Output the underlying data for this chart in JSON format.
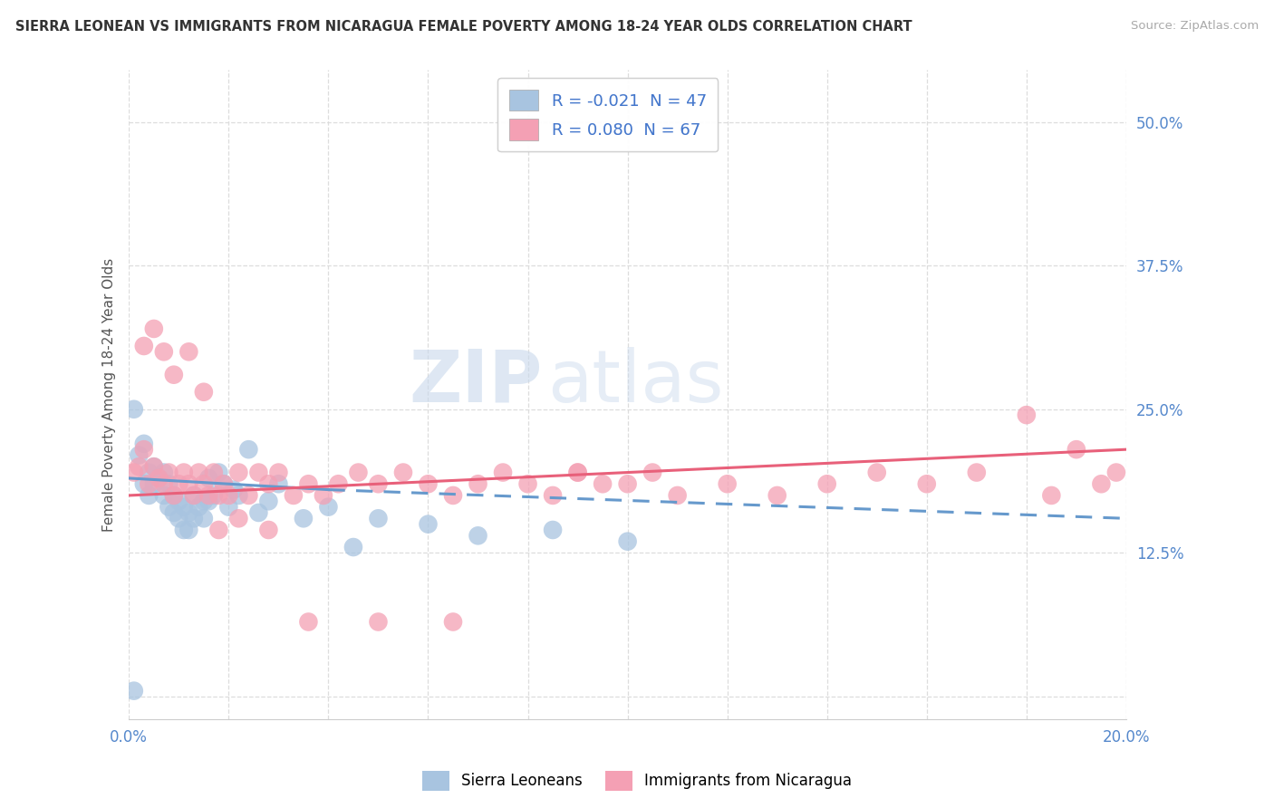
{
  "title": "SIERRA LEONEAN VS IMMIGRANTS FROM NICARAGUA FEMALE POVERTY AMONG 18-24 YEAR OLDS CORRELATION CHART",
  "source": "Source: ZipAtlas.com",
  "ylabel": "Female Poverty Among 18-24 Year Olds",
  "xlim": [
    0.0,
    0.2
  ],
  "ylim": [
    -0.02,
    0.545
  ],
  "yticks": [
    0.0,
    0.125,
    0.25,
    0.375,
    0.5
  ],
  "ytick_labels": [
    "",
    "12.5%",
    "25.0%",
    "37.5%",
    "50.0%"
  ],
  "xtick_labels": [
    "0.0%",
    "",
    "",
    "",
    "",
    "",
    "",
    "",
    "",
    "",
    "20.0%"
  ],
  "color_blue": "#a8c4e0",
  "color_pink": "#f4a0b4",
  "line_blue": "#6699cc",
  "line_pink": "#e8607a",
  "watermark_zip": "ZIP",
  "watermark_atlas": "atlas",
  "background_color": "#ffffff",
  "grid_color": "#dddddd",
  "blue_scatter_x": [
    0.001,
    0.002,
    0.003,
    0.003,
    0.004,
    0.004,
    0.005,
    0.005,
    0.006,
    0.007,
    0.007,
    0.008,
    0.008,
    0.009,
    0.009,
    0.01,
    0.01,
    0.011,
    0.011,
    0.012,
    0.012,
    0.013,
    0.013,
    0.014,
    0.015,
    0.015,
    0.016,
    0.016,
    0.017,
    0.018,
    0.019,
    0.02,
    0.021,
    0.022,
    0.024,
    0.026,
    0.028,
    0.03,
    0.035,
    0.04,
    0.045,
    0.05,
    0.06,
    0.07,
    0.085,
    0.1,
    0.001
  ],
  "blue_scatter_y": [
    0.25,
    0.21,
    0.22,
    0.185,
    0.195,
    0.175,
    0.2,
    0.185,
    0.19,
    0.195,
    0.175,
    0.185,
    0.165,
    0.175,
    0.16,
    0.17,
    0.155,
    0.165,
    0.145,
    0.16,
    0.145,
    0.155,
    0.175,
    0.165,
    0.17,
    0.155,
    0.19,
    0.17,
    0.175,
    0.195,
    0.185,
    0.165,
    0.18,
    0.175,
    0.215,
    0.16,
    0.17,
    0.185,
    0.155,
    0.165,
    0.13,
    0.155,
    0.15,
    0.14,
    0.145,
    0.135,
    0.005
  ],
  "pink_scatter_x": [
    0.001,
    0.002,
    0.003,
    0.004,
    0.005,
    0.006,
    0.007,
    0.008,
    0.009,
    0.01,
    0.011,
    0.012,
    0.013,
    0.014,
    0.015,
    0.016,
    0.017,
    0.018,
    0.019,
    0.02,
    0.022,
    0.024,
    0.026,
    0.028,
    0.03,
    0.033,
    0.036,
    0.039,
    0.042,
    0.046,
    0.05,
    0.055,
    0.06,
    0.065,
    0.07,
    0.075,
    0.08,
    0.085,
    0.09,
    0.095,
    0.1,
    0.105,
    0.11,
    0.12,
    0.13,
    0.14,
    0.15,
    0.16,
    0.17,
    0.18,
    0.185,
    0.19,
    0.195,
    0.198,
    0.003,
    0.005,
    0.007,
    0.009,
    0.012,
    0.015,
    0.018,
    0.022,
    0.028,
    0.036,
    0.05,
    0.065,
    0.09
  ],
  "pink_scatter_y": [
    0.195,
    0.2,
    0.215,
    0.185,
    0.2,
    0.19,
    0.185,
    0.195,
    0.175,
    0.185,
    0.195,
    0.185,
    0.175,
    0.195,
    0.185,
    0.175,
    0.195,
    0.175,
    0.185,
    0.175,
    0.195,
    0.175,
    0.195,
    0.185,
    0.195,
    0.175,
    0.185,
    0.175,
    0.185,
    0.195,
    0.185,
    0.195,
    0.185,
    0.175,
    0.185,
    0.195,
    0.185,
    0.175,
    0.195,
    0.185,
    0.185,
    0.195,
    0.175,
    0.185,
    0.175,
    0.185,
    0.195,
    0.185,
    0.195,
    0.245,
    0.175,
    0.215,
    0.185,
    0.195,
    0.305,
    0.32,
    0.3,
    0.28,
    0.3,
    0.265,
    0.145,
    0.155,
    0.145,
    0.065,
    0.065,
    0.065,
    0.195
  ],
  "blue_trend_x0": 0.0,
  "blue_trend_x_cross": 0.04,
  "blue_trend_x1": 0.2,
  "blue_trend_y0": 0.19,
  "blue_trend_y_cross": 0.18,
  "blue_trend_y1": 0.155,
  "pink_trend_x0": 0.0,
  "pink_trend_x1": 0.2,
  "pink_trend_y0": 0.175,
  "pink_trend_y1": 0.215
}
